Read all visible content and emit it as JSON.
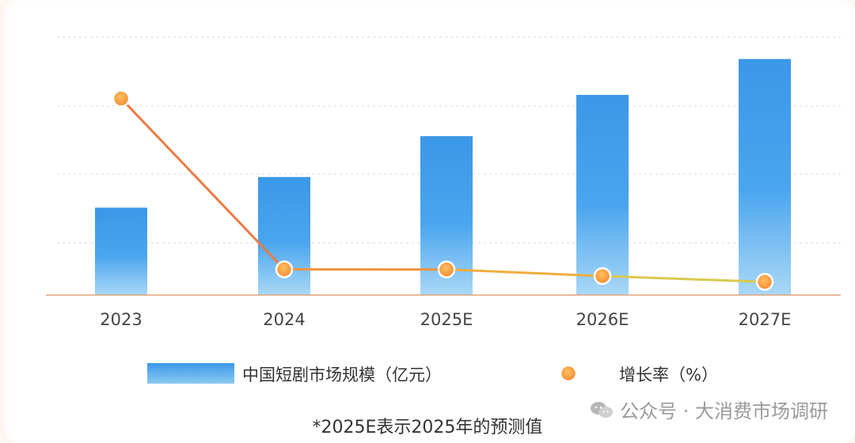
{
  "chart_data": {
    "type": "bar",
    "categories": [
      "2023",
      "2024",
      "2025E",
      "2026E",
      "2027E"
    ],
    "series": [
      {
        "name": "中国短剧市场规模（亿元）",
        "kind": "bar",
        "values": [
          373.9,
          505.0,
          680.0,
          856.4,
          1010.0
        ],
        "color": "#3b97e8"
      },
      {
        "name": "增长率（%）",
        "kind": "line",
        "values": [
          267.6,
          35.0,
          34.9,
          25.9,
          18.0
        ],
        "color": "#f08a3c"
      }
    ],
    "ylim_left": [
      0,
      1100
    ],
    "ylim_right": [
      0,
      350
    ],
    "grid": true,
    "legend": "bottom"
  },
  "footnote": "*2025E表示2025年的预测值",
  "watermark": {
    "icon": "wechat-icon",
    "text": "公众号 · 大消费市场调研"
  }
}
